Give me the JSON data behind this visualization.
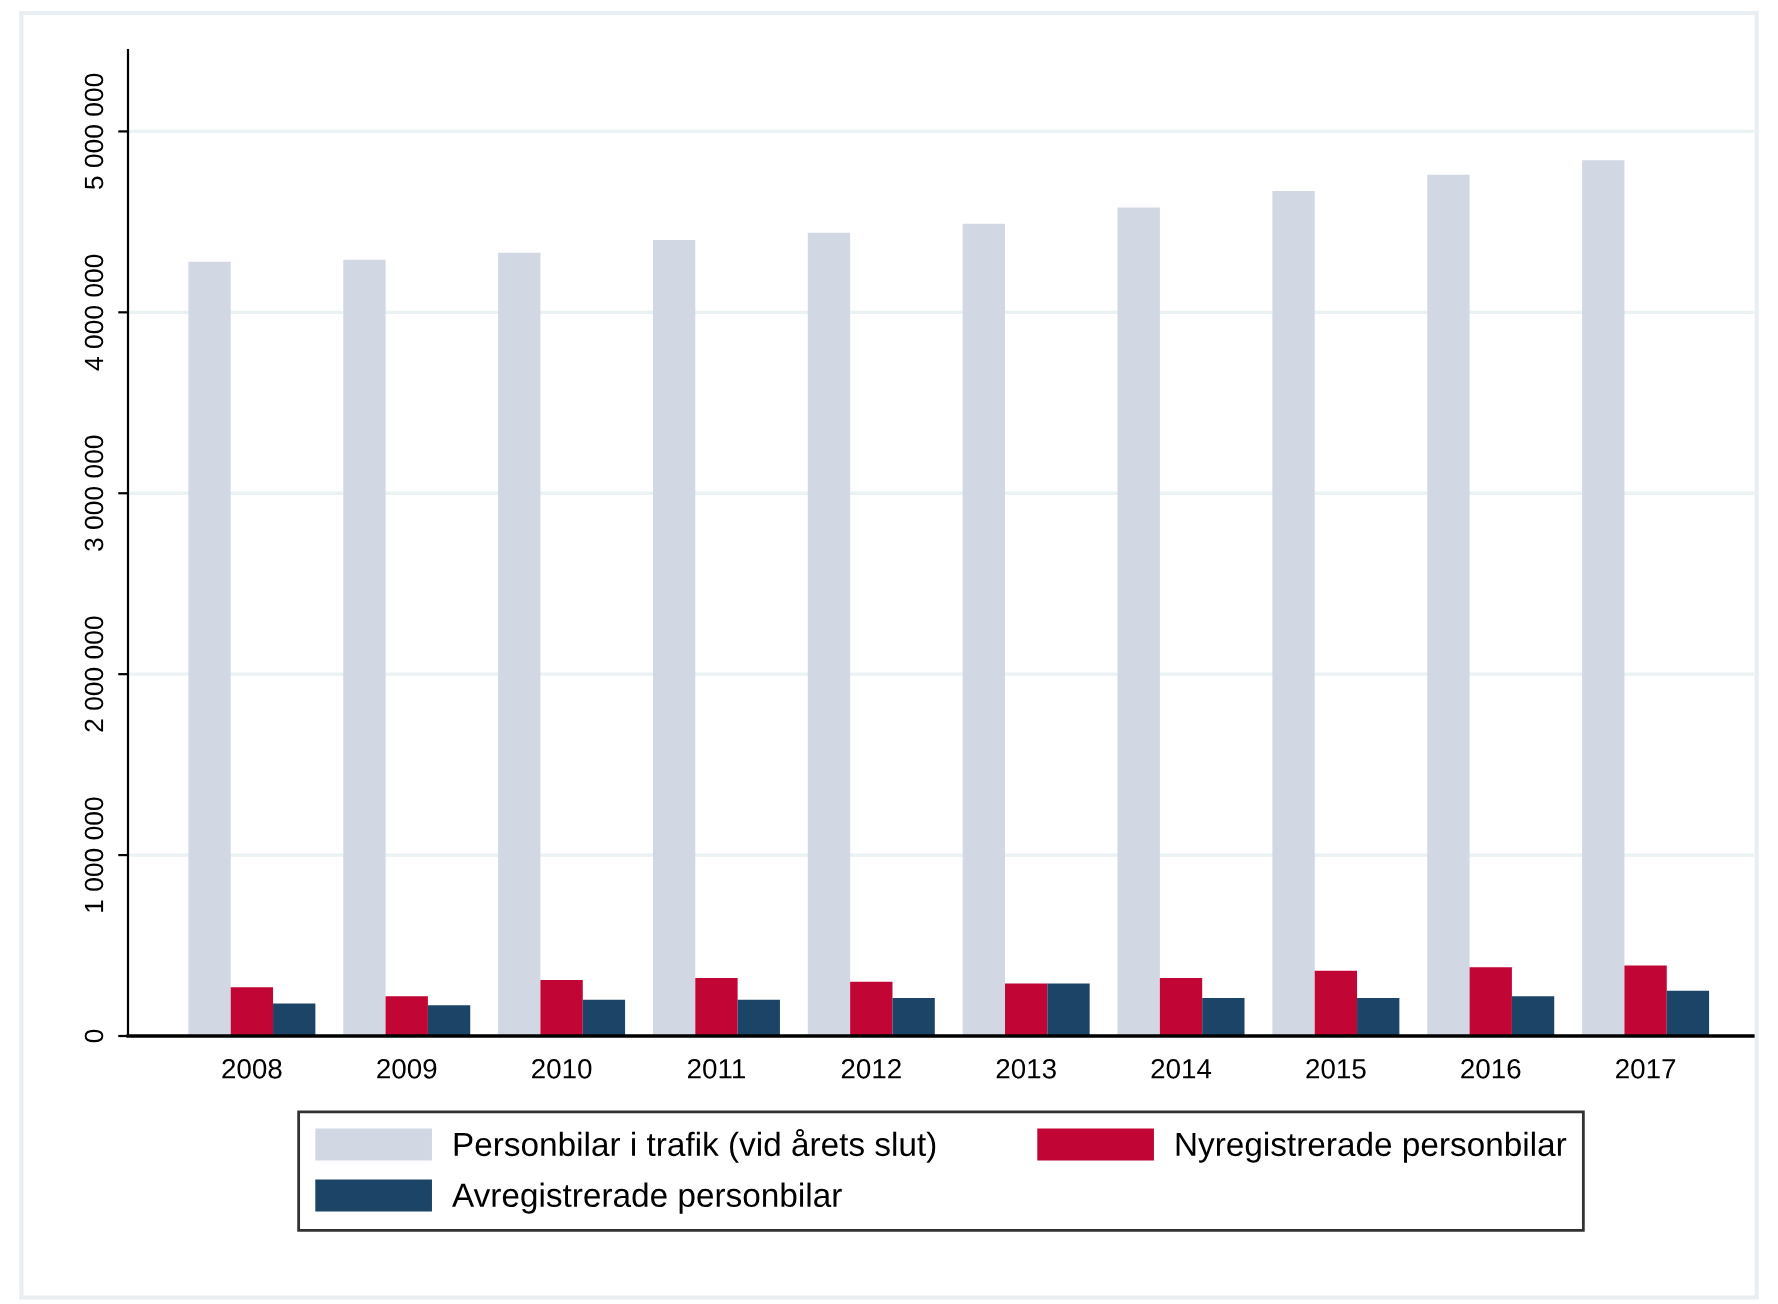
{
  "chart_data": {
    "type": "bar",
    "categories": [
      "2008",
      "2009",
      "2010",
      "2011",
      "2012",
      "2013",
      "2014",
      "2015",
      "2016",
      "2017"
    ],
    "series": [
      {
        "name": "Personbilar i trafik (vid årets slut)",
        "color": "#d1d8e3",
        "values": [
          4280000,
          4290000,
          4330000,
          4400000,
          4440000,
          4490000,
          4580000,
          4670000,
          4760000,
          4840000
        ]
      },
      {
        "name": "Nyregistrerade personbilar",
        "color": "#c10534",
        "values": [
          270000,
          220000,
          310000,
          320000,
          300000,
          290000,
          320000,
          360000,
          380000,
          390000
        ]
      },
      {
        "name": "Avregistrerade personbilar",
        "color": "#1c4466",
        "values": [
          180000,
          170000,
          200000,
          200000,
          210000,
          290000,
          210000,
          210000,
          220000,
          250000
        ]
      }
    ],
    "ylim": [
      0,
      5450000
    ],
    "yticks": [
      {
        "value": 0,
        "label": "0"
      },
      {
        "value": 1000000,
        "label": "1 000 000"
      },
      {
        "value": 2000000,
        "label": "2 000 000"
      },
      {
        "value": 3000000,
        "label": "3 000 000"
      },
      {
        "value": 4000000,
        "label": "4 000 000"
      },
      {
        "value": 5000000,
        "label": "5 000 000"
      }
    ],
    "grid": "y",
    "legend": "bottom"
  }
}
